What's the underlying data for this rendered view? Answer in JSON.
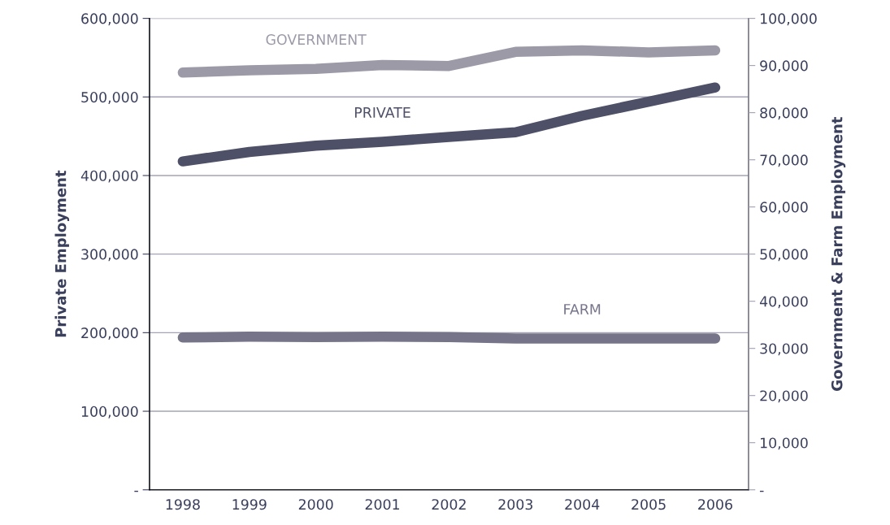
{
  "chart_data": {
    "type": "line",
    "ylabel": "Private Employment",
    "y2label": "Government & Farm Employment",
    "categories": [
      "1998",
      "1999",
      "2000",
      "2001",
      "2002",
      "2003",
      "2004",
      "2005",
      "2006"
    ],
    "series": [
      {
        "name": "GOVERNMENT",
        "color": "#9d9aa8",
        "axis": "y2",
        "values": [
          88500,
          89000,
          89300,
          90100,
          89900,
          92900,
          93200,
          92800,
          93200
        ]
      },
      {
        "name": "PRIVATE",
        "color": "#4e5068",
        "axis": "y",
        "values": [
          418000,
          430000,
          438000,
          443000,
          449000,
          455000,
          476000,
          494000,
          512000
        ]
      },
      {
        "name": "FARM",
        "color": "#757489",
        "axis": "y2",
        "values": [
          32300,
          32500,
          32400,
          32500,
          32400,
          32100,
          32100,
          32100,
          32100
        ]
      }
    ],
    "ylim": [
      0,
      600000
    ],
    "yticks": [
      {
        "value": 0,
        "label": "-"
      },
      {
        "value": 100000,
        "label": "100,000"
      },
      {
        "value": 200000,
        "label": "200,000"
      },
      {
        "value": 300000,
        "label": "300,000"
      },
      {
        "value": 400000,
        "label": "400,000"
      },
      {
        "value": 500000,
        "label": "500,000"
      },
      {
        "value": 600000,
        "label": "600,000"
      }
    ],
    "y2lim": [
      0,
      100000
    ],
    "y2ticks": [
      {
        "value": 0,
        "label": "-"
      },
      {
        "value": 10000,
        "label": "10,000"
      },
      {
        "value": 20000,
        "label": "20,000"
      },
      {
        "value": 30000,
        "label": "30,000"
      },
      {
        "value": 40000,
        "label": "40,000"
      },
      {
        "value": 50000,
        "label": "50,000"
      },
      {
        "value": 60000,
        "label": "60,000"
      },
      {
        "value": 70000,
        "label": "70,000"
      },
      {
        "value": 80000,
        "label": "80,000"
      },
      {
        "value": 90000,
        "label": "90,000"
      },
      {
        "value": 100000,
        "label": "100,000"
      }
    ],
    "grid": "y",
    "legend": false,
    "line_style": "solid"
  }
}
